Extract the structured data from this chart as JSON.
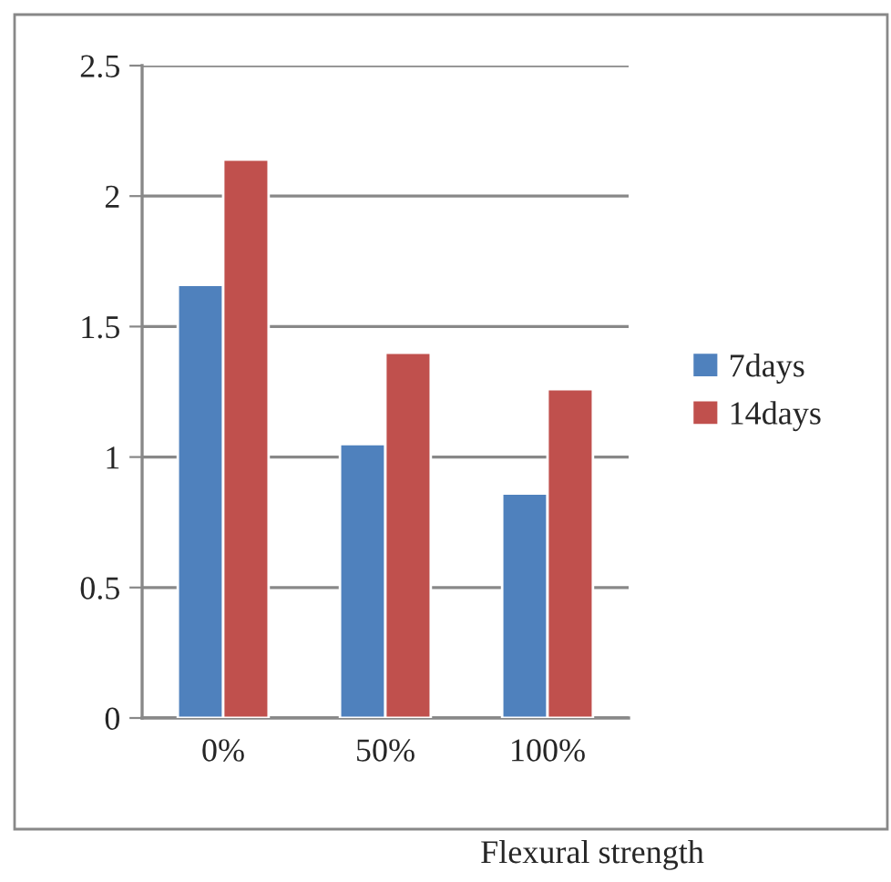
{
  "chart_data": {
    "type": "bar",
    "xlabel": "Flexural strength",
    "categories": [
      "0%",
      "50%",
      "100%"
    ],
    "series": [
      {
        "name": "7days",
        "color": "#4f81bd",
        "values": [
          1.66,
          1.05,
          0.86
        ]
      },
      {
        "name": "14days",
        "color": "#c0504d",
        "values": [
          2.14,
          1.4,
          1.26
        ]
      }
    ],
    "ylim": [
      0,
      2.5
    ],
    "yticks": [
      0,
      0.5,
      1,
      1.5,
      2,
      2.5
    ],
    "grid": "y",
    "legend": "right"
  }
}
